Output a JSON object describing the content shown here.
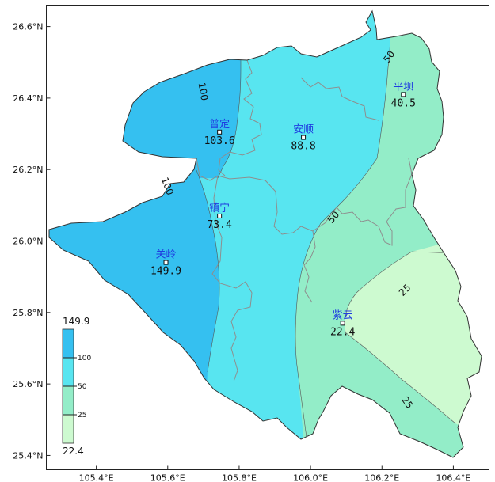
{
  "map": {
    "axes": {
      "lat_ticks": [
        {
          "value": 26.6,
          "label": "26.6°N"
        },
        {
          "value": 26.4,
          "label": "26.4°N"
        },
        {
          "value": 26.2,
          "label": "26.2°N"
        },
        {
          "value": 26.0,
          "label": "26.0°N"
        },
        {
          "value": 25.8,
          "label": "25.8°N"
        },
        {
          "value": 25.6,
          "label": "25.6°N"
        },
        {
          "value": 25.4,
          "label": "25.4°N"
        }
      ],
      "lon_ticks": [
        {
          "value": 105.4,
          "label": "105.4°E"
        },
        {
          "value": 105.6,
          "label": "105.6°E"
        },
        {
          "value": 105.8,
          "label": "105.8°E"
        },
        {
          "value": 106.0,
          "label": "106.0°E"
        },
        {
          "value": 106.2,
          "label": "106.2°E"
        },
        {
          "value": 106.4,
          "label": "106.4°E"
        }
      ],
      "lon_range": [
        105.26,
        106.5
      ],
      "lat_range": [
        25.36,
        26.66
      ]
    },
    "stations": [
      {
        "name": "普定",
        "value": "103.6",
        "lon": 105.745,
        "lat": 26.305
      },
      {
        "name": "安顺",
        "value": "88.8",
        "lon": 105.98,
        "lat": 26.29
      },
      {
        "name": "平坝",
        "value": "40.5",
        "lon": 106.26,
        "lat": 26.41
      },
      {
        "name": "镇宁",
        "value": "73.4",
        "lon": 105.745,
        "lat": 26.07
      },
      {
        "name": "关岭",
        "value": "149.9",
        "lon": 105.595,
        "lat": 25.94
      },
      {
        "name": "紫云",
        "value": "22.4",
        "lon": 106.09,
        "lat": 25.77
      }
    ],
    "contour_labels": [
      {
        "text": "100",
        "lon": 105.698,
        "lat": 26.418,
        "rotate": 80
      },
      {
        "text": "100",
        "lon": 105.598,
        "lat": 26.153,
        "rotate": 70
      },
      {
        "text": "50",
        "lon": 106.221,
        "lat": 26.515,
        "rotate": -55
      },
      {
        "text": "50",
        "lon": 106.065,
        "lat": 26.066,
        "rotate": -50
      },
      {
        "text": "25",
        "lon": 106.265,
        "lat": 25.862,
        "rotate": -45
      },
      {
        "text": "25",
        "lon": 106.27,
        "lat": 25.547,
        "rotate": 55
      }
    ],
    "colors": {
      "level_above_100": "#35c0f0",
      "level_50_100": "#58e5f0",
      "level_25_50": "#93edc8",
      "level_below_25": "#cdfad0",
      "county_border": "#8e8e8e",
      "outline": "#333333"
    }
  },
  "legend": {
    "max_label": "149.9",
    "min_label": "22.4",
    "levels": [
      {
        "value": 100,
        "label": "100"
      },
      {
        "value": 50,
        "label": "50"
      },
      {
        "value": 25,
        "label": "25"
      }
    ]
  }
}
